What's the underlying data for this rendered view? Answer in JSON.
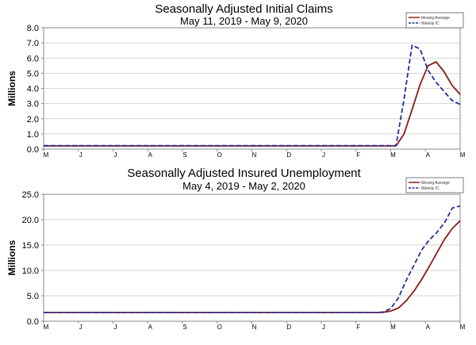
{
  "chart_data": [
    {
      "type": "line",
      "title": "Seasonally Adjusted Initial Claims",
      "subtitle": "May 11, 2019 - May 9, 2020",
      "ylabel": "Millions",
      "ylim": [
        0,
        8
      ],
      "y_ticks": [
        "0.0",
        "1.0",
        "2.0",
        "3.0",
        "4.0",
        "5.0",
        "6.0",
        "7.0",
        "8.0"
      ],
      "x_tick_labels": [
        "M",
        "J",
        "J",
        "A",
        "S",
        "O",
        "N",
        "D",
        "J",
        "F",
        "M",
        "A",
        "M"
      ],
      "grid": true,
      "legend_position": "top-right",
      "series": [
        {
          "name": "Moving Average",
          "color": "#8b1a1a",
          "dash": "solid",
          "values": [
            0.21,
            0.21,
            0.21,
            0.21,
            0.21,
            0.21,
            0.21,
            0.21,
            0.21,
            0.21,
            0.21,
            0.21,
            0.21,
            0.21,
            0.21,
            0.21,
            0.21,
            0.21,
            0.21,
            0.21,
            0.21,
            0.21,
            0.21,
            0.21,
            0.21,
            0.21,
            0.21,
            0.21,
            0.21,
            0.21,
            0.21,
            0.21,
            0.21,
            0.21,
            0.21,
            0.21,
            0.21,
            0.21,
            0.21,
            0.21,
            0.21,
            0.21,
            0.21,
            0.21,
            0.21,
            1.0,
            2.6,
            4.25,
            5.5,
            5.75,
            5.1,
            4.2,
            3.6
          ]
        },
        {
          "name": "Weekly IC",
          "color": "#1f2f9c",
          "dash": "dashed",
          "values": [
            0.23,
            0.23,
            0.23,
            0.23,
            0.23,
            0.23,
            0.23,
            0.23,
            0.23,
            0.23,
            0.23,
            0.23,
            0.23,
            0.23,
            0.23,
            0.23,
            0.23,
            0.23,
            0.23,
            0.23,
            0.23,
            0.23,
            0.23,
            0.23,
            0.23,
            0.23,
            0.23,
            0.23,
            0.23,
            0.23,
            0.23,
            0.23,
            0.23,
            0.23,
            0.23,
            0.23,
            0.23,
            0.23,
            0.23,
            0.23,
            0.23,
            0.23,
            0.23,
            0.23,
            0.23,
            3.3,
            6.85,
            6.6,
            5.2,
            4.4,
            3.8,
            3.2,
            2.95
          ]
        }
      ]
    },
    {
      "type": "line",
      "title": "Seasonally Adjusted Insured Unemployment",
      "subtitle": "May 4, 2019 - May 2, 2020",
      "ylabel": "Millions",
      "ylim": [
        0,
        25
      ],
      "y_ticks": [
        "0.0",
        "5.0",
        "10.0",
        "15.0",
        "20.0",
        "25.0"
      ],
      "x_tick_labels": [
        "M",
        "J",
        "J",
        "A",
        "S",
        "O",
        "N",
        "D",
        "J",
        "F",
        "M",
        "A",
        "M"
      ],
      "grid": true,
      "legend_position": "top-right",
      "series": [
        {
          "name": "Moving Average",
          "color": "#8b1a1a",
          "dash": "solid",
          "values": [
            1.7,
            1.7,
            1.7,
            1.7,
            1.7,
            1.7,
            1.7,
            1.7,
            1.7,
            1.7,
            1.7,
            1.7,
            1.7,
            1.7,
            1.7,
            1.7,
            1.7,
            1.7,
            1.7,
            1.7,
            1.7,
            1.7,
            1.7,
            1.7,
            1.7,
            1.7,
            1.7,
            1.7,
            1.7,
            1.7,
            1.7,
            1.7,
            1.7,
            1.7,
            1.7,
            1.7,
            1.7,
            1.7,
            1.7,
            1.7,
            1.7,
            1.7,
            1.7,
            1.7,
            1.75,
            2.0,
            2.6,
            4.0,
            5.9,
            8.2,
            10.8,
            13.5,
            16.2,
            18.3,
            19.8
          ]
        },
        {
          "name": "Weekly IC",
          "color": "#1f2f9c",
          "dash": "dashed",
          "values": [
            1.7,
            1.7,
            1.7,
            1.7,
            1.7,
            1.7,
            1.7,
            1.7,
            1.7,
            1.7,
            1.7,
            1.7,
            1.7,
            1.7,
            1.7,
            1.7,
            1.7,
            1.7,
            1.7,
            1.7,
            1.7,
            1.7,
            1.7,
            1.7,
            1.7,
            1.7,
            1.7,
            1.7,
            1.7,
            1.7,
            1.7,
            1.7,
            1.7,
            1.7,
            1.7,
            1.7,
            1.7,
            1.7,
            1.7,
            1.7,
            1.7,
            1.7,
            1.7,
            1.7,
            1.8,
            2.5,
            4.6,
            8.0,
            11.0,
            14.0,
            16.0,
            17.5,
            19.5,
            22.3,
            22.7
          ]
        }
      ]
    }
  ]
}
